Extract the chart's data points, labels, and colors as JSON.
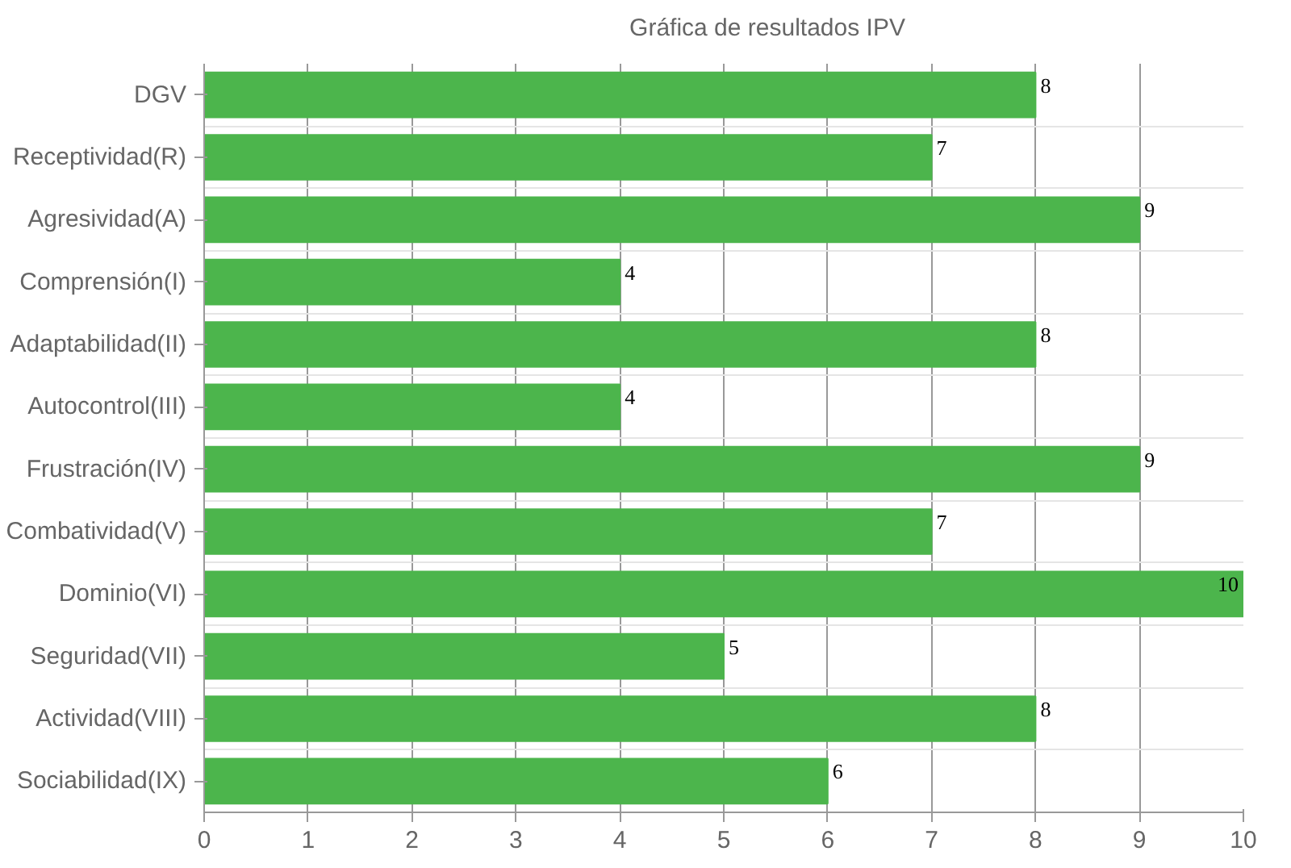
{
  "chart_data": {
    "type": "bar",
    "orientation": "horizontal",
    "categories": [
      "DGV",
      "Receptividad(R)",
      "Agresividad(A)",
      "Comprensión(I)",
      "Adaptabilidad(II)",
      "Autocontrol(III)",
      "Frustración(IV)",
      "Combatividad(V)",
      "Dominio(VI)",
      "Seguridad(VII)",
      "Actividad(VIII)",
      "Sociabilidad(IX)"
    ],
    "series": [
      {
        "name": "Gráfica de resultados IPV",
        "color": "#4cb54c",
        "values": [
          8,
          7,
          9,
          4,
          8,
          4,
          9,
          7,
          10,
          5,
          8,
          6
        ]
      }
    ],
    "xlim": [
      0,
      10
    ],
    "xticks": [
      0,
      1,
      2,
      3,
      4,
      5,
      6,
      7,
      8,
      9,
      10
    ],
    "grid": true,
    "legend": "top",
    "data_labels": true
  }
}
